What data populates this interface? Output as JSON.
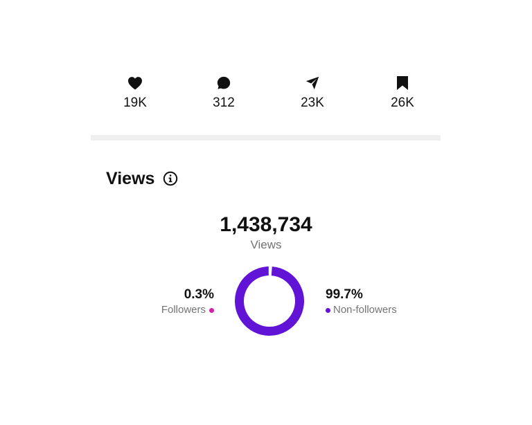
{
  "stats": [
    {
      "icon": "heart-icon",
      "value": "19K"
    },
    {
      "icon": "comment-icon",
      "value": "312"
    },
    {
      "icon": "send-icon",
      "value": "23K"
    },
    {
      "icon": "bookmark-icon",
      "value": "26K"
    }
  ],
  "views": {
    "title": "Views",
    "info_icon": "info-icon",
    "total": "1,438,734",
    "total_label": "Views",
    "followers": {
      "percent": "0.3%",
      "label": "Followers",
      "fraction": 0.003,
      "color": "#d61fa8"
    },
    "non_followers": {
      "percent": "99.7%",
      "label": "Non-followers",
      "fraction": 0.997,
      "color": "#6214d6"
    }
  },
  "colors": {
    "text": "#111111",
    "muted": "#737373",
    "divider": "#efefef"
  }
}
